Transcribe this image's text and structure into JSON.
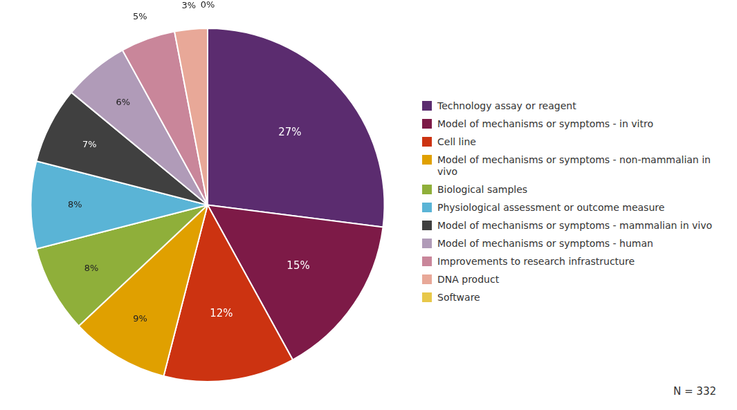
{
  "chart_data": {
    "type": "pie",
    "categories": [
      "Technology assay or reagent",
      "Model of mechanisms or symptoms - in vitro",
      "Cell line",
      "Model of mechanisms or symptoms - non-mammalian in\nvivo",
      "Biological samples",
      "Physiological assessment or outcome measure",
      "Model of mechanisms or symptoms - mammalian in vivo",
      "Model of mechanisms or symptoms - human",
      "Improvements to research infrastructure",
      "DNA product",
      "Software"
    ],
    "values": [
      27,
      15,
      12,
      9,
      8,
      8,
      7,
      6,
      5,
      3,
      0
    ],
    "value_labels": [
      "27%",
      "15%",
      "12%",
      "9%",
      "8%",
      "8%",
      "7%",
      "6%",
      "5%",
      "3%",
      "0%"
    ],
    "colors": [
      "#5b2c6f",
      "#7d1a47",
      "#cc3311",
      "#e0a000",
      "#8faf3a",
      "#5ab4d6",
      "#404040",
      "#b09bb8",
      "#c9869a",
      "#e8a898",
      "#e8c84a"
    ],
    "data_labels": true,
    "legend": "right",
    "annotations": [
      "N = 332"
    ]
  }
}
